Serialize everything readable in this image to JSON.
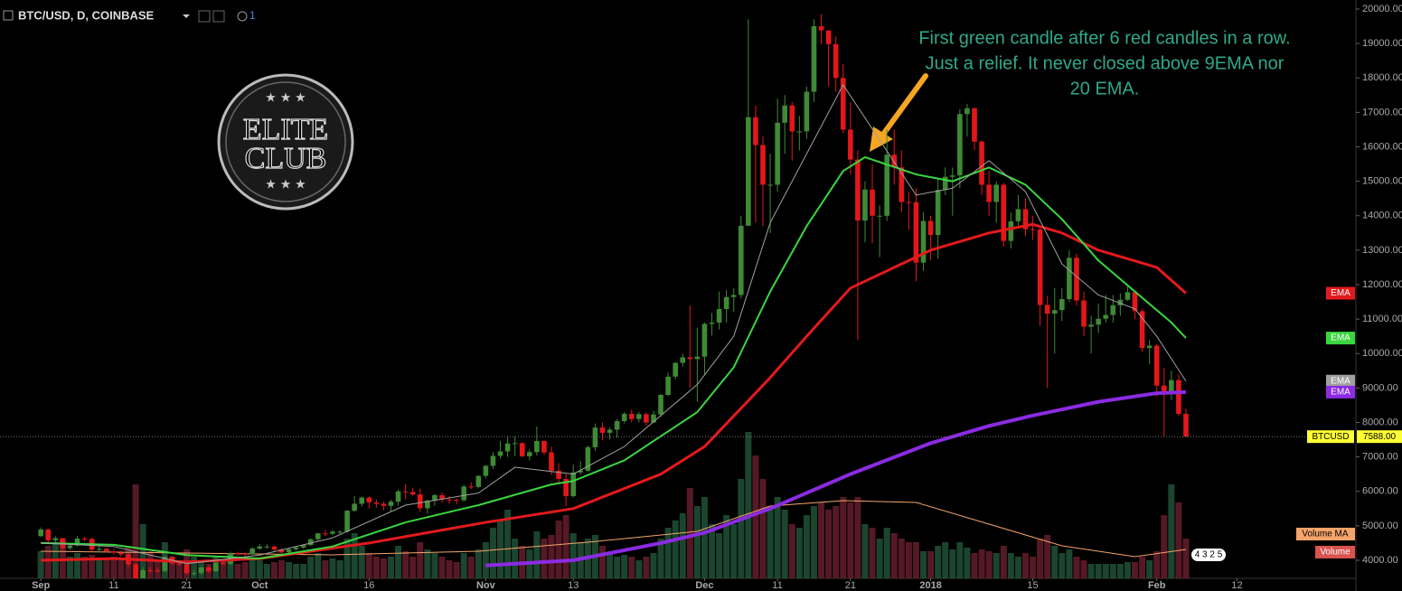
{
  "chart_data": {
    "type": "candlestick",
    "title": "BTC/USD, D, COINBASE",
    "alerts": "1",
    "x": [
      0,
      1,
      2,
      3,
      4,
      5,
      6,
      7,
      8,
      9,
      10,
      11,
      12,
      13,
      14,
      15,
      16,
      17,
      18,
      19,
      20,
      21,
      22,
      23,
      24,
      25,
      26,
      27,
      28,
      29,
      30,
      31,
      32,
      33,
      34,
      35,
      36,
      37,
      38,
      39,
      40,
      41,
      42,
      43,
      44,
      45,
      46,
      47,
      48,
      49,
      50,
      51,
      52,
      53,
      54,
      55,
      56,
      57,
      58,
      59,
      60,
      61,
      62,
      63,
      64,
      65,
      66,
      67,
      68,
      69,
      70,
      71,
      72,
      73,
      74,
      75,
      76,
      77,
      78,
      79,
      80,
      81,
      82,
      83,
      84,
      85,
      86,
      87,
      88,
      89,
      90,
      91,
      92,
      93,
      94,
      95,
      96,
      97,
      98,
      99,
      100,
      101,
      102,
      103,
      104,
      105,
      106,
      107,
      108,
      109,
      110,
      111,
      112,
      113,
      114,
      115,
      116,
      117,
      118,
      119,
      120,
      121,
      122,
      123,
      124,
      125,
      126,
      127,
      128,
      129,
      130,
      131,
      132,
      133,
      134,
      135,
      136,
      137,
      138,
      139,
      140,
      141,
      142,
      143,
      144,
      145,
      146,
      147,
      148,
      149,
      150,
      151,
      152,
      153,
      154,
      155,
      156,
      157
    ],
    "open": [
      4700,
      4892,
      4580,
      4640,
      4350,
      4430,
      4630,
      4620,
      4310,
      4330,
      4260,
      4220,
      4170,
      3880,
      3240,
      3710,
      3700,
      3690,
      4100,
      3910,
      3880,
      3630,
      3630,
      3790,
      3680,
      3930,
      3890,
      4210,
      4190,
      4170,
      4340,
      4400,
      4400,
      4310,
      4230,
      4320,
      4370,
      4440,
      4610,
      4780,
      4770,
      4830,
      4830,
      5440,
      5640,
      5820,
      5680,
      5640,
      5580,
      5700,
      6000,
      5980,
      5910,
      5510,
      5730,
      5890,
      5760,
      5750,
      5740,
      6140,
      6130,
      6450,
      6740,
      7030,
      7160,
      7390,
      7400,
      7020,
      7140,
      7460,
      7130,
      6600,
      6360,
      5860,
      6550,
      6600,
      7280,
      7850,
      7700,
      7790,
      8040,
      8250,
      8100,
      8240,
      8000,
      8230,
      8800,
      9330,
      9730,
      9890,
      9840,
      9910,
      10860,
      10900,
      11290,
      11640,
      11700,
      13710,
      16860,
      16050,
      14900,
      14900,
      16700,
      17200,
      16450,
      16450,
      17600,
      19500,
      19380,
      18980,
      18000,
      16500,
      15630,
      13860,
      14760,
      14000,
      14000,
      15770,
      15400,
      14400,
      14390,
      12640,
      13850,
      13440,
      14750,
      15130,
      15170,
      16950,
      17120,
      16150,
      14900,
      14400,
      14900,
      13270,
      13840,
      14190,
      13610,
      13600,
      11410,
      11160,
      11260,
      11580,
      12780,
      11540,
      10780,
      10840,
      11010,
      11120,
      11400,
      11560,
      11780,
      11230,
      10160,
      10230,
      9070,
      8880,
      9230,
      8250
    ],
    "high": [
      4950,
      4920,
      4700,
      4650,
      4480,
      4700,
      4680,
      4650,
      4400,
      4370,
      4330,
      4280,
      4200,
      3920,
      3790,
      3800,
      3790,
      4140,
      4120,
      3990,
      3920,
      3710,
      3830,
      3840,
      3980,
      3990,
      4250,
      4250,
      4230,
      4380,
      4470,
      4470,
      4420,
      4350,
      4350,
      4400,
      4460,
      4640,
      4800,
      4880,
      4880,
      4870,
      5460,
      5860,
      5850,
      5850,
      5760,
      5700,
      5760,
      6050,
      6200,
      6100,
      6080,
      5760,
      5930,
      5970,
      5860,
      5800,
      6190,
      6260,
      6470,
      6760,
      7140,
      7460,
      7610,
      7600,
      7430,
      7220,
      7880,
      7480,
      7300,
      6820,
      6500,
      6780,
      6880,
      7330,
      7970,
      8000,
      7860,
      8100,
      8300,
      8380,
      8300,
      8290,
      8340,
      8830,
      9450,
      9750,
      10000,
      11400,
      10750,
      10900,
      11180,
      11800,
      11850,
      11900,
      14000,
      19700,
      17200,
      16300,
      15800,
      17400,
      17500,
      17300,
      16900,
      17750,
      19700,
      19850,
      19300,
      19200,
      18400,
      17300,
      15900,
      15000,
      15500,
      14300,
      16500,
      16500,
      15900,
      14700,
      14800,
      14100,
      14000,
      15100,
      15400,
      15400,
      17100,
      17250,
      17150,
      16200,
      15300,
      15000,
      14950,
      14100,
      14600,
      14500,
      14000,
      13650,
      11680,
      11900,
      11900,
      13000,
      12900,
      11800,
      11100,
      11450,
      11700,
      11700,
      11750,
      12000,
      11820,
      11300,
      10390,
      10280,
      9580,
      9500,
      9400,
      8400
    ],
    "low": [
      4680,
      4500,
      4500,
      4300,
      4300,
      4400,
      4560,
      4250,
      4230,
      4230,
      4170,
      4100,
      3800,
      3000,
      3180,
      3620,
      3650,
      3650,
      3880,
      3840,
      3580,
      3560,
      3580,
      3630,
      3660,
      3860,
      3860,
      4140,
      4120,
      4150,
      4300,
      4330,
      4270,
      4170,
      4160,
      4280,
      4330,
      4410,
      4560,
      4700,
      4730,
      4750,
      4800,
      5400,
      5560,
      5500,
      5520,
      5450,
      5400,
      5580,
      5760,
      5880,
      5400,
      5350,
      5580,
      5670,
      5640,
      5620,
      5710,
      6070,
      6090,
      6380,
      6650,
      6950,
      7000,
      7020,
      6990,
      6900,
      7040,
      7060,
      6470,
      6250,
      5560,
      5820,
      6480,
      6560,
      7180,
      7480,
      7500,
      7560,
      7970,
      8000,
      8000,
      7900,
      7980,
      8160,
      8760,
      9250,
      9620,
      9000,
      8600,
      9400,
      10520,
      10700,
      10900,
      11200,
      11600,
      13700,
      13800,
      13700,
      13500,
      14700,
      15800,
      15600,
      15900,
      16230,
      17300,
      18980,
      17750,
      17600,
      16400,
      15200,
      10400,
      13230,
      13200,
      12800,
      13850,
      14900,
      14100,
      13600,
      12100,
      12400,
      12700,
      12750,
      14600,
      14000,
      14800,
      16300,
      15900,
      14600,
      14000,
      13800,
      13100,
      13050,
      13670,
      13400,
      13300,
      10800,
      9000,
      10000,
      10950,
      11500,
      11400,
      10500,
      10000,
      10600,
      10900,
      10900,
      11100,
      11530,
      11000,
      10050,
      9700,
      8750,
      7600,
      8650,
      8180,
      7588
    ],
    "close": [
      4892,
      4580,
      4640,
      4350,
      4430,
      4630,
      4620,
      4310,
      4330,
      4260,
      4220,
      4170,
      3880,
      3240,
      3710,
      3700,
      3690,
      4100,
      3910,
      3880,
      3630,
      3630,
      3790,
      3680,
      3930,
      3890,
      4210,
      4190,
      4170,
      4340,
      4400,
      4400,
      4310,
      4230,
      4320,
      4370,
      4440,
      4610,
      4780,
      4770,
      4830,
      4830,
      5440,
      5640,
      5820,
      5680,
      5640,
      5580,
      5700,
      6000,
      5980,
      5910,
      5510,
      5730,
      5890,
      5760,
      5750,
      5740,
      6140,
      6130,
      6450,
      6740,
      7030,
      7160,
      7390,
      7400,
      7020,
      7140,
      7460,
      7130,
      6600,
      6360,
      5860,
      6550,
      6600,
      7280,
      7850,
      7700,
      7790,
      8040,
      8250,
      8100,
      8240,
      8000,
      8230,
      8800,
      9330,
      9730,
      9890,
      9840,
      9910,
      10860,
      10900,
      11290,
      11640,
      11700,
      13710,
      16860,
      16050,
      14900,
      14900,
      16700,
      17200,
      16450,
      16450,
      17600,
      19500,
      19380,
      18980,
      18000,
      16500,
      15630,
      13860,
      14760,
      14000,
      14000,
      15770,
      15400,
      14400,
      14390,
      12640,
      13850,
      13440,
      14750,
      15130,
      15170,
      16950,
      17120,
      16150,
      14900,
      14400,
      14900,
      13270,
      13840,
      14190,
      13610,
      13600,
      11410,
      11160,
      11260,
      11580,
      12780,
      11540,
      10780,
      10840,
      11010,
      11120,
      11400,
      11560,
      11780,
      11230,
      10160,
      10230,
      9070,
      8880,
      9230,
      8250,
      7588
    ],
    "up_color": "#3f8a35",
    "down_color": "#e3171b",
    "volume": {
      "name": "Volume",
      "color": "#d9534f",
      "up_color": "#1e4d33",
      "down_color": "#5e1c29",
      "ylim": [
        0,
        320
      ],
      "values": [
        15,
        18,
        20,
        22,
        12,
        14,
        12,
        13,
        10,
        11,
        12,
        10,
        18,
        52,
        30,
        15,
        10,
        20,
        12,
        10,
        16,
        12,
        9,
        8,
        12,
        10,
        14,
        8,
        9,
        10,
        10,
        8,
        9,
        10,
        9,
        8,
        8,
        12,
        14,
        10,
        11,
        10,
        22,
        25,
        18,
        14,
        12,
        11,
        12,
        18,
        15,
        12,
        20,
        16,
        14,
        12,
        10,
        9,
        14,
        12,
        16,
        20,
        28,
        32,
        38,
        22,
        18,
        16,
        26,
        22,
        24,
        32,
        35,
        25,
        20,
        22,
        24,
        18,
        14,
        12,
        13,
        12,
        10,
        12,
        14,
        22,
        28,
        32,
        36,
        50,
        40,
        45,
        30,
        25,
        35,
        30,
        55,
        81,
        68,
        55,
        40,
        45,
        38,
        30,
        28,
        35,
        40,
        42,
        38,
        40,
        45,
        42,
        45,
        30,
        28,
        22,
        28,
        25,
        22,
        20,
        20,
        15,
        15,
        18,
        20,
        16,
        20,
        17,
        14,
        16,
        15,
        14,
        18,
        14,
        12,
        14,
        12,
        22,
        24,
        18,
        14,
        16,
        12,
        10,
        8,
        8,
        8,
        8,
        8,
        9,
        9,
        12,
        10,
        15,
        35,
        52,
        42,
        22
      ]
    },
    "volume_ma": {
      "name": "Volume MA",
      "color": "#f4a46a",
      "x": [
        0,
        20,
        40,
        60,
        75,
        90,
        100,
        110,
        120,
        130,
        140,
        150,
        157
      ],
      "values": [
        15,
        14,
        13,
        15,
        20,
        26,
        40,
        43,
        42,
        30,
        18,
        12,
        16
      ]
    },
    "overlays": [
      {
        "name": "EMA",
        "color": "#e31a1c",
        "width": 3,
        "x": [
          0,
          10,
          20,
          30,
          45,
          61,
          73,
          85,
          91,
          100,
          105,
          111,
          122,
          130,
          136,
          140,
          145,
          153,
          157
        ],
        "values": [
          4000,
          4050,
          3950,
          4050,
          4500,
          5100,
          5500,
          6500,
          7300,
          9300,
          10500,
          11900,
          13000,
          13500,
          13750,
          13500,
          13000,
          12500,
          11750
        ]
      },
      {
        "name": "EMA",
        "color": "#3ad63f",
        "width": 2,
        "x": [
          0,
          10,
          20,
          30,
          40,
          50,
          60,
          70,
          73,
          80,
          90,
          95,
          100,
          105,
          110,
          113,
          120,
          125,
          130,
          135,
          140,
          145,
          150,
          155,
          157
        ],
        "values": [
          4500,
          4450,
          4150,
          4050,
          4400,
          5100,
          5600,
          6200,
          6300,
          6900,
          8300,
          9600,
          11800,
          13700,
          15300,
          15700,
          15200,
          15000,
          15400,
          14900,
          13900,
          12700,
          11800,
          10900,
          10450
        ]
      },
      {
        "name": "EMA",
        "color": "#a0a0a0",
        "width": 1,
        "x": [
          0,
          10,
          20,
          30,
          40,
          50,
          60,
          65,
          73,
          80,
          90,
          95,
          100,
          105,
          110,
          115,
          120,
          125,
          130,
          135,
          140,
          145,
          150,
          153,
          157
        ],
        "values": [
          4500,
          4400,
          3900,
          4150,
          4650,
          5600,
          5950,
          6700,
          6500,
          7300,
          9100,
          10500,
          13800,
          15800,
          17800,
          16200,
          14600,
          14800,
          15600,
          14700,
          12600,
          11700,
          11300,
          10500,
          9200
        ]
      },
      {
        "name": "EMA",
        "color": "#8b2be2",
        "width": 4,
        "x": [
          61,
          73,
          85,
          91,
          100,
          111,
          122,
          130,
          136,
          145,
          153,
          157
        ],
        "values": [
          3850,
          4000,
          4500,
          4800,
          5500,
          6500,
          7400,
          7900,
          8200,
          8600,
          8850,
          8880
        ]
      }
    ],
    "xlim": [
      -5.6,
      180.3
    ],
    "ylim": [
      3475,
      20262
    ],
    "xticks": [
      {
        "value": 0,
        "label": "Sep"
      },
      {
        "value": 10,
        "label": "11"
      },
      {
        "value": 20,
        "label": "21"
      },
      {
        "value": 30,
        "label": "Oct"
      },
      {
        "value": 45,
        "label": "16"
      },
      {
        "value": 61,
        "label": "Nov"
      },
      {
        "value": 73,
        "label": "13"
      },
      {
        "value": 91,
        "label": "Dec"
      },
      {
        "value": 101,
        "label": "11"
      },
      {
        "value": 111,
        "label": "21"
      },
      {
        "value": 122,
        "label": "2018"
      },
      {
        "value": 136,
        "label": "15"
      },
      {
        "value": 153,
        "label": "Feb"
      },
      {
        "value": 164,
        "label": "12"
      }
    ],
    "yticks": [
      {
        "value": 4000,
        "label": "4000.00"
      },
      {
        "value": 5000,
        "label": "5000.00"
      },
      {
        "value": 6000,
        "label": "6000.00"
      },
      {
        "value": 7000,
        "label": "7000.00"
      },
      {
        "value": 8000,
        "label": "8000.00"
      },
      {
        "value": 9000,
        "label": "9000.00"
      },
      {
        "value": 10000,
        "label": "10000.00"
      },
      {
        "value": 11000,
        "label": "11000.00"
      },
      {
        "value": 12000,
        "label": "12000.00"
      },
      {
        "value": 13000,
        "label": "13000.00"
      },
      {
        "value": 14000,
        "label": "14000.00"
      },
      {
        "value": 15000,
        "label": "15000.00"
      },
      {
        "value": 16000,
        "label": "16000.00"
      },
      {
        "value": 17000,
        "label": "17000.00"
      },
      {
        "value": 18000,
        "label": "18000.00"
      },
      {
        "value": 19000,
        "label": "19000.00"
      },
      {
        "value": 20000,
        "label": "20000.00"
      }
    ],
    "last_price": {
      "label": "BTCUSD",
      "value": 7588,
      "value_label": "7588.00"
    },
    "annotation": [
      "First green candle after 6 red candles in a row.",
      "Just a relief. It never closed above 9EMA nor",
      "20 EMA."
    ],
    "logo": [
      "ELITE",
      "CLUB"
    ],
    "badge": "4 3 2 5"
  }
}
